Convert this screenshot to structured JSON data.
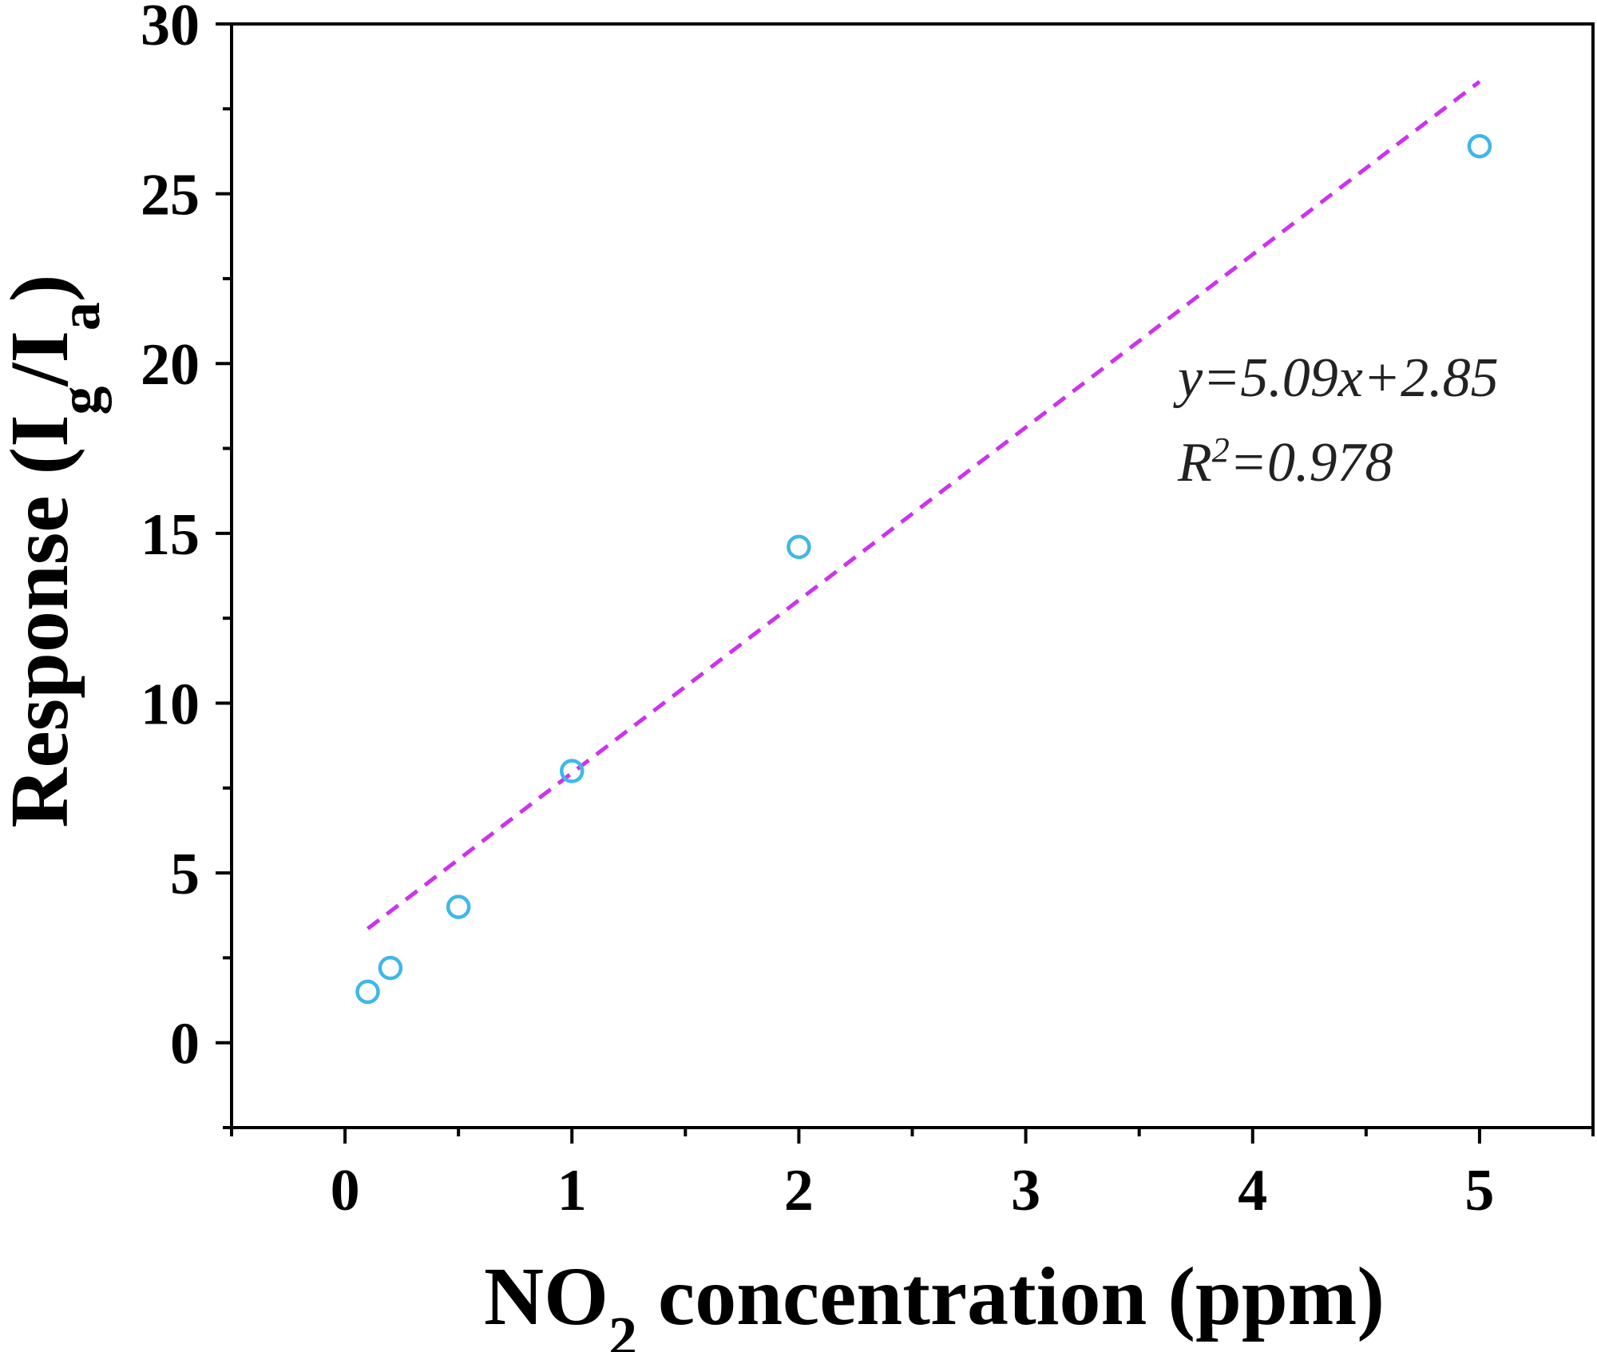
{
  "chart_data": {
    "type": "scatter",
    "title": "",
    "xlabel": {
      "prefix": "NO",
      "sub": "2",
      "suffix": " concentration (ppm)"
    },
    "ylabel": {
      "prefix": "Response (I",
      "sub1": "g",
      "mid": "/I",
      "sub2": "a",
      "suffix": ")"
    },
    "xlim": [
      -0.5,
      5.5
    ],
    "ylim": [
      -2.5,
      30
    ],
    "xticks": [
      0,
      1,
      2,
      3,
      4,
      5
    ],
    "yticks": [
      0,
      5,
      10,
      15,
      20,
      25,
      30
    ],
    "x_minor_step": 0.5,
    "y_minor_step": 2.5,
    "grid": false,
    "series": [
      {
        "name": "Response",
        "marker": "open-circle",
        "color": "#3fb7ea",
        "x": [
          0.1,
          0.2,
          0.5,
          1,
          2,
          5
        ],
        "y": [
          1.5,
          2.2,
          4.0,
          8.0,
          14.6,
          26.4
        ]
      }
    ],
    "fit": {
      "slope": 5.09,
      "intercept": 2.85,
      "x_range": [
        0.1,
        5
      ],
      "color": "#cc33ee",
      "style": "dashed"
    },
    "annotations": {
      "equation": "y=5.09x+2.85",
      "r2_prefix": "R",
      "r2_sup": "2",
      "r2_value": "=0.978"
    }
  }
}
